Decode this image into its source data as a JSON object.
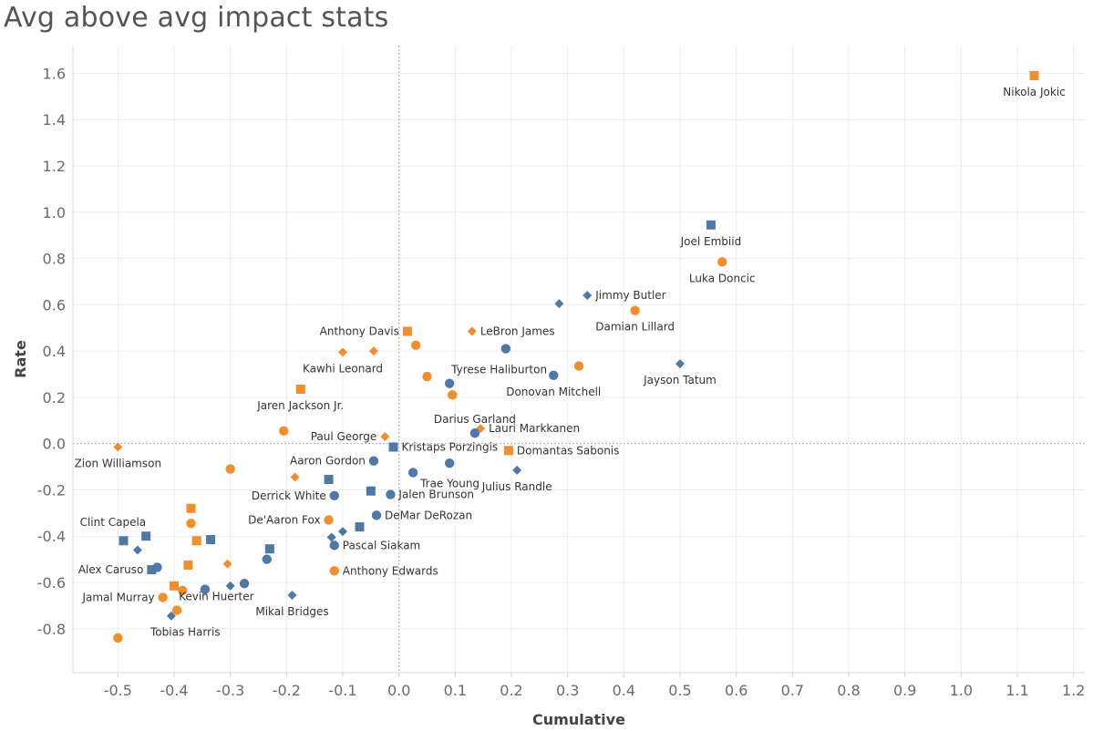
{
  "chart_data": {
    "type": "scatter",
    "title": "Avg above avg impact stats",
    "xlabel": "Cumulative",
    "ylabel": "Rate",
    "xlim": [
      -0.58,
      1.22
    ],
    "ylim": [
      -0.99,
      1.72
    ],
    "x_ticks": [
      -0.5,
      -0.4,
      -0.3,
      -0.2,
      -0.1,
      0.0,
      0.1,
      0.2,
      0.3,
      0.4,
      0.5,
      0.6,
      0.7,
      0.8,
      0.9,
      1.0,
      1.1,
      1.2
    ],
    "x_tick_labels": [
      "-0.5",
      "-0.4",
      "-0.3",
      "-0.2",
      "-0.1",
      "0.0",
      "0.1",
      "0.2",
      "0.3",
      "0.4",
      "0.5",
      "0.6",
      "0.7",
      "0.8",
      "0.9",
      "1.0",
      "1.1",
      "1.2"
    ],
    "y_ticks": [
      -0.8,
      -0.6,
      -0.4,
      -0.2,
      0.0,
      0.2,
      0.4,
      0.6,
      0.8,
      1.0,
      1.2,
      1.4,
      1.6
    ],
    "y_tick_labels": [
      "-0.8",
      "-0.6",
      "-0.4",
      "-0.2",
      "0.0",
      "0.2",
      "0.4",
      "0.6",
      "0.8",
      "1.0",
      "1.2",
      "1.4",
      "1.6"
    ],
    "grid": true,
    "colors": {
      "orange": "#f28e2b",
      "blue": "#4e79a7",
      "grid": "#ececec",
      "zero_line": "#b0b0b0"
    },
    "points": [
      {
        "x": 1.13,
        "y": 1.59,
        "shape": "square",
        "color": "orange",
        "label": "Nikola Jokic",
        "anchor": "below"
      },
      {
        "x": 0.555,
        "y": 0.945,
        "shape": "square",
        "color": "blue",
        "label": "Joel Embiid",
        "anchor": "below"
      },
      {
        "x": 0.575,
        "y": 0.785,
        "shape": "circle",
        "color": "orange",
        "label": "Luka Doncic",
        "anchor": "below"
      },
      {
        "x": 0.335,
        "y": 0.64,
        "shape": "diamond",
        "color": "blue",
        "label": "Jimmy Butler",
        "anchor": "right"
      },
      {
        "x": 0.285,
        "y": 0.605,
        "shape": "diamond",
        "color": "blue",
        "label": "",
        "anchor": "none"
      },
      {
        "x": 0.42,
        "y": 0.575,
        "shape": "circle",
        "color": "orange",
        "label": "Damian Lillard",
        "anchor": "below"
      },
      {
        "x": 0.5,
        "y": 0.345,
        "shape": "diamond",
        "color": "blue",
        "label": "Jayson Tatum",
        "anchor": "below"
      },
      {
        "x": 0.13,
        "y": 0.485,
        "shape": "diamond",
        "color": "orange",
        "label": "LeBron James",
        "anchor": "right"
      },
      {
        "x": 0.015,
        "y": 0.485,
        "shape": "square",
        "color": "orange",
        "label": "Anthony Davis",
        "anchor": "left"
      },
      {
        "x": 0.03,
        "y": 0.425,
        "shape": "circle",
        "color": "orange",
        "label": "",
        "anchor": "none"
      },
      {
        "x": 0.19,
        "y": 0.41,
        "shape": "circle",
        "color": "blue",
        "label": "",
        "anchor": "none"
      },
      {
        "x": -0.1,
        "y": 0.395,
        "shape": "diamond",
        "color": "orange",
        "label": "Kawhi Leonard",
        "anchor": "below"
      },
      {
        "x": -0.045,
        "y": 0.4,
        "shape": "diamond",
        "color": "orange",
        "label": "",
        "anchor": "none"
      },
      {
        "x": 0.32,
        "y": 0.335,
        "shape": "circle",
        "color": "orange",
        "label": "",
        "anchor": "none"
      },
      {
        "x": 0.275,
        "y": 0.295,
        "shape": "circle",
        "color": "blue",
        "label": "Donovan Mitchell",
        "anchor": "below"
      },
      {
        "x": 0.05,
        "y": 0.29,
        "shape": "circle",
        "color": "orange",
        "label": "",
        "anchor": "none"
      },
      {
        "x": 0.09,
        "y": 0.26,
        "shape": "circle",
        "color": "blue",
        "label": "Tyrese Haliburton",
        "anchor": "above-right"
      },
      {
        "x": 0.095,
        "y": 0.21,
        "shape": "circle",
        "color": "orange",
        "label": "",
        "anchor": "none"
      },
      {
        "x": -0.175,
        "y": 0.235,
        "shape": "square",
        "color": "orange",
        "label": "Jaren Jackson Jr.",
        "anchor": "below"
      },
      {
        "x": 0.145,
        "y": 0.065,
        "shape": "diamond",
        "color": "orange",
        "label": "Lauri Markkanen",
        "anchor": "right"
      },
      {
        "x": 0.135,
        "y": 0.045,
        "shape": "circle",
        "color": "blue",
        "label": "Darius Garland",
        "anchor": "above"
      },
      {
        "x": -0.205,
        "y": 0.055,
        "shape": "circle",
        "color": "orange",
        "label": "",
        "anchor": "none"
      },
      {
        "x": -0.025,
        "y": 0.03,
        "shape": "diamond",
        "color": "orange",
        "label": "Paul George",
        "anchor": "left"
      },
      {
        "x": -0.01,
        "y": -0.015,
        "shape": "square",
        "color": "blue",
        "label": "Kristaps Porzingis",
        "anchor": "right"
      },
      {
        "x": 0.195,
        "y": -0.03,
        "shape": "square",
        "color": "orange",
        "label": "Domantas Sabonis",
        "anchor": "right"
      },
      {
        "x": -0.5,
        "y": -0.015,
        "shape": "diamond",
        "color": "orange",
        "label": "Zion Williamson",
        "anchor": "below"
      },
      {
        "x": -0.045,
        "y": -0.075,
        "shape": "circle",
        "color": "blue",
        "label": "Aaron Gordon",
        "anchor": "left"
      },
      {
        "x": 0.09,
        "y": -0.085,
        "shape": "circle",
        "color": "blue",
        "label": "",
        "anchor": "none"
      },
      {
        "x": 0.025,
        "y": -0.125,
        "shape": "circle",
        "color": "blue",
        "label": "Trae Young",
        "anchor": "right-below"
      },
      {
        "x": 0.21,
        "y": -0.115,
        "shape": "diamond",
        "color": "blue",
        "label": "Julius Randle",
        "anchor": "below"
      },
      {
        "x": -0.3,
        "y": -0.11,
        "shape": "circle",
        "color": "orange",
        "label": "",
        "anchor": "none"
      },
      {
        "x": -0.185,
        "y": -0.145,
        "shape": "diamond",
        "color": "orange",
        "label": "",
        "anchor": "none"
      },
      {
        "x": -0.125,
        "y": -0.155,
        "shape": "square",
        "color": "blue",
        "label": "",
        "anchor": "none"
      },
      {
        "x": -0.05,
        "y": -0.205,
        "shape": "square",
        "color": "blue",
        "label": "",
        "anchor": "none"
      },
      {
        "x": -0.015,
        "y": -0.22,
        "shape": "circle",
        "color": "blue",
        "label": "Jalen Brunson",
        "anchor": "right"
      },
      {
        "x": -0.115,
        "y": -0.225,
        "shape": "circle",
        "color": "blue",
        "label": "Derrick White",
        "anchor": "left"
      },
      {
        "x": -0.37,
        "y": -0.28,
        "shape": "square",
        "color": "orange",
        "label": "",
        "anchor": "none"
      },
      {
        "x": -0.04,
        "y": -0.31,
        "shape": "circle",
        "color": "blue",
        "label": "DeMar DeRozan",
        "anchor": "right"
      },
      {
        "x": -0.125,
        "y": -0.33,
        "shape": "circle",
        "color": "orange",
        "label": "De'Aaron Fox",
        "anchor": "left"
      },
      {
        "x": -0.37,
        "y": -0.345,
        "shape": "circle",
        "color": "orange",
        "label": "",
        "anchor": "none"
      },
      {
        "x": -0.07,
        "y": -0.36,
        "shape": "square",
        "color": "blue",
        "label": "",
        "anchor": "none"
      },
      {
        "x": -0.1,
        "y": -0.38,
        "shape": "diamond",
        "color": "blue",
        "label": "",
        "anchor": "none"
      },
      {
        "x": -0.12,
        "y": -0.405,
        "shape": "diamond",
        "color": "blue",
        "label": "",
        "anchor": "none"
      },
      {
        "x": -0.115,
        "y": -0.44,
        "shape": "circle",
        "color": "blue",
        "label": "Pascal Siakam",
        "anchor": "right"
      },
      {
        "x": -0.45,
        "y": -0.4,
        "shape": "square",
        "color": "blue",
        "label": "Clint Capela",
        "anchor": "above-left"
      },
      {
        "x": -0.49,
        "y": -0.42,
        "shape": "square",
        "color": "blue",
        "label": "",
        "anchor": "none"
      },
      {
        "x": -0.335,
        "y": -0.415,
        "shape": "square",
        "color": "blue",
        "label": "",
        "anchor": "none"
      },
      {
        "x": -0.36,
        "y": -0.42,
        "shape": "square",
        "color": "orange",
        "label": "",
        "anchor": "none"
      },
      {
        "x": -0.23,
        "y": -0.455,
        "shape": "square",
        "color": "blue",
        "label": "",
        "anchor": "none"
      },
      {
        "x": -0.465,
        "y": -0.46,
        "shape": "diamond",
        "color": "blue",
        "label": "",
        "anchor": "none"
      },
      {
        "x": -0.235,
        "y": -0.5,
        "shape": "circle",
        "color": "blue",
        "label": "",
        "anchor": "none"
      },
      {
        "x": -0.305,
        "y": -0.52,
        "shape": "diamond",
        "color": "orange",
        "label": "",
        "anchor": "none"
      },
      {
        "x": -0.375,
        "y": -0.525,
        "shape": "square",
        "color": "orange",
        "label": "",
        "anchor": "none"
      },
      {
        "x": -0.43,
        "y": -0.535,
        "shape": "circle",
        "color": "blue",
        "label": "",
        "anchor": "none"
      },
      {
        "x": -0.44,
        "y": -0.545,
        "shape": "square",
        "color": "blue",
        "label": "Alex Caruso",
        "anchor": "left"
      },
      {
        "x": -0.115,
        "y": -0.55,
        "shape": "circle",
        "color": "orange",
        "label": "Anthony Edwards",
        "anchor": "right"
      },
      {
        "x": -0.275,
        "y": -0.605,
        "shape": "circle",
        "color": "blue",
        "label": "",
        "anchor": "none"
      },
      {
        "x": -0.3,
        "y": -0.615,
        "shape": "diamond",
        "color": "blue",
        "label": "",
        "anchor": "none"
      },
      {
        "x": -0.4,
        "y": -0.615,
        "shape": "square",
        "color": "orange",
        "label": "",
        "anchor": "none"
      },
      {
        "x": -0.345,
        "y": -0.63,
        "shape": "circle",
        "color": "blue",
        "label": "",
        "anchor": "none"
      },
      {
        "x": -0.385,
        "y": -0.635,
        "shape": "circle",
        "color": "orange",
        "label": "",
        "anchor": "none"
      },
      {
        "x": -0.19,
        "y": -0.655,
        "shape": "diamond",
        "color": "blue",
        "label": "Mikal Bridges",
        "anchor": "below"
      },
      {
        "x": -0.42,
        "y": -0.665,
        "shape": "circle",
        "color": "orange",
        "label": "Jamal Murray",
        "anchor": "left"
      },
      {
        "x": -0.395,
        "y": -0.72,
        "shape": "circle",
        "color": "orange",
        "label": "Kevin Huerter",
        "anchor": "above-right"
      },
      {
        "x": -0.405,
        "y": -0.745,
        "shape": "diamond",
        "color": "blue",
        "label": "",
        "anchor": "none"
      },
      {
        "x": -0.5,
        "y": -0.84,
        "shape": "circle",
        "color": "orange",
        "label": "",
        "anchor": "none"
      },
      {
        "x": -0.38,
        "y": -0.815,
        "shape": "none",
        "color": "orange",
        "label": "Tobias Harris",
        "anchor": "at"
      }
    ]
  }
}
